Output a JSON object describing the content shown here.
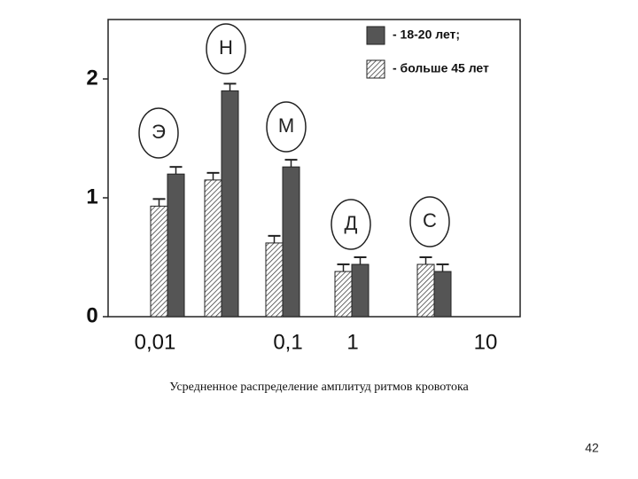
{
  "chart_data": {
    "type": "bar",
    "categories": [
      "Э",
      "Н",
      "М",
      "Д",
      "С"
    ],
    "series": [
      {
        "name": "- 18-20 лет;",
        "color": "#555555",
        "values": [
          1.2,
          1.9,
          1.26,
          0.44,
          0.38
        ],
        "errors": [
          0.06,
          0.06,
          0.06,
          0.06,
          0.06
        ]
      },
      {
        "name": "- больше 45 лет",
        "color": "#ffffff",
        "hatch": true,
        "values": [
          0.93,
          1.15,
          0.62,
          0.38,
          0.44
        ],
        "errors": [
          0.06,
          0.06,
          0.06,
          0.06,
          0.06
        ]
      }
    ],
    "ylim": [
      0,
      2.5
    ],
    "yticks": [
      0,
      1,
      2
    ],
    "x_axis_labels": [
      "0,01",
      "0,1",
      "1",
      "10"
    ],
    "caption": "Усредненное распределение амплитуд ритмов кровотока"
  },
  "page_number": "42"
}
